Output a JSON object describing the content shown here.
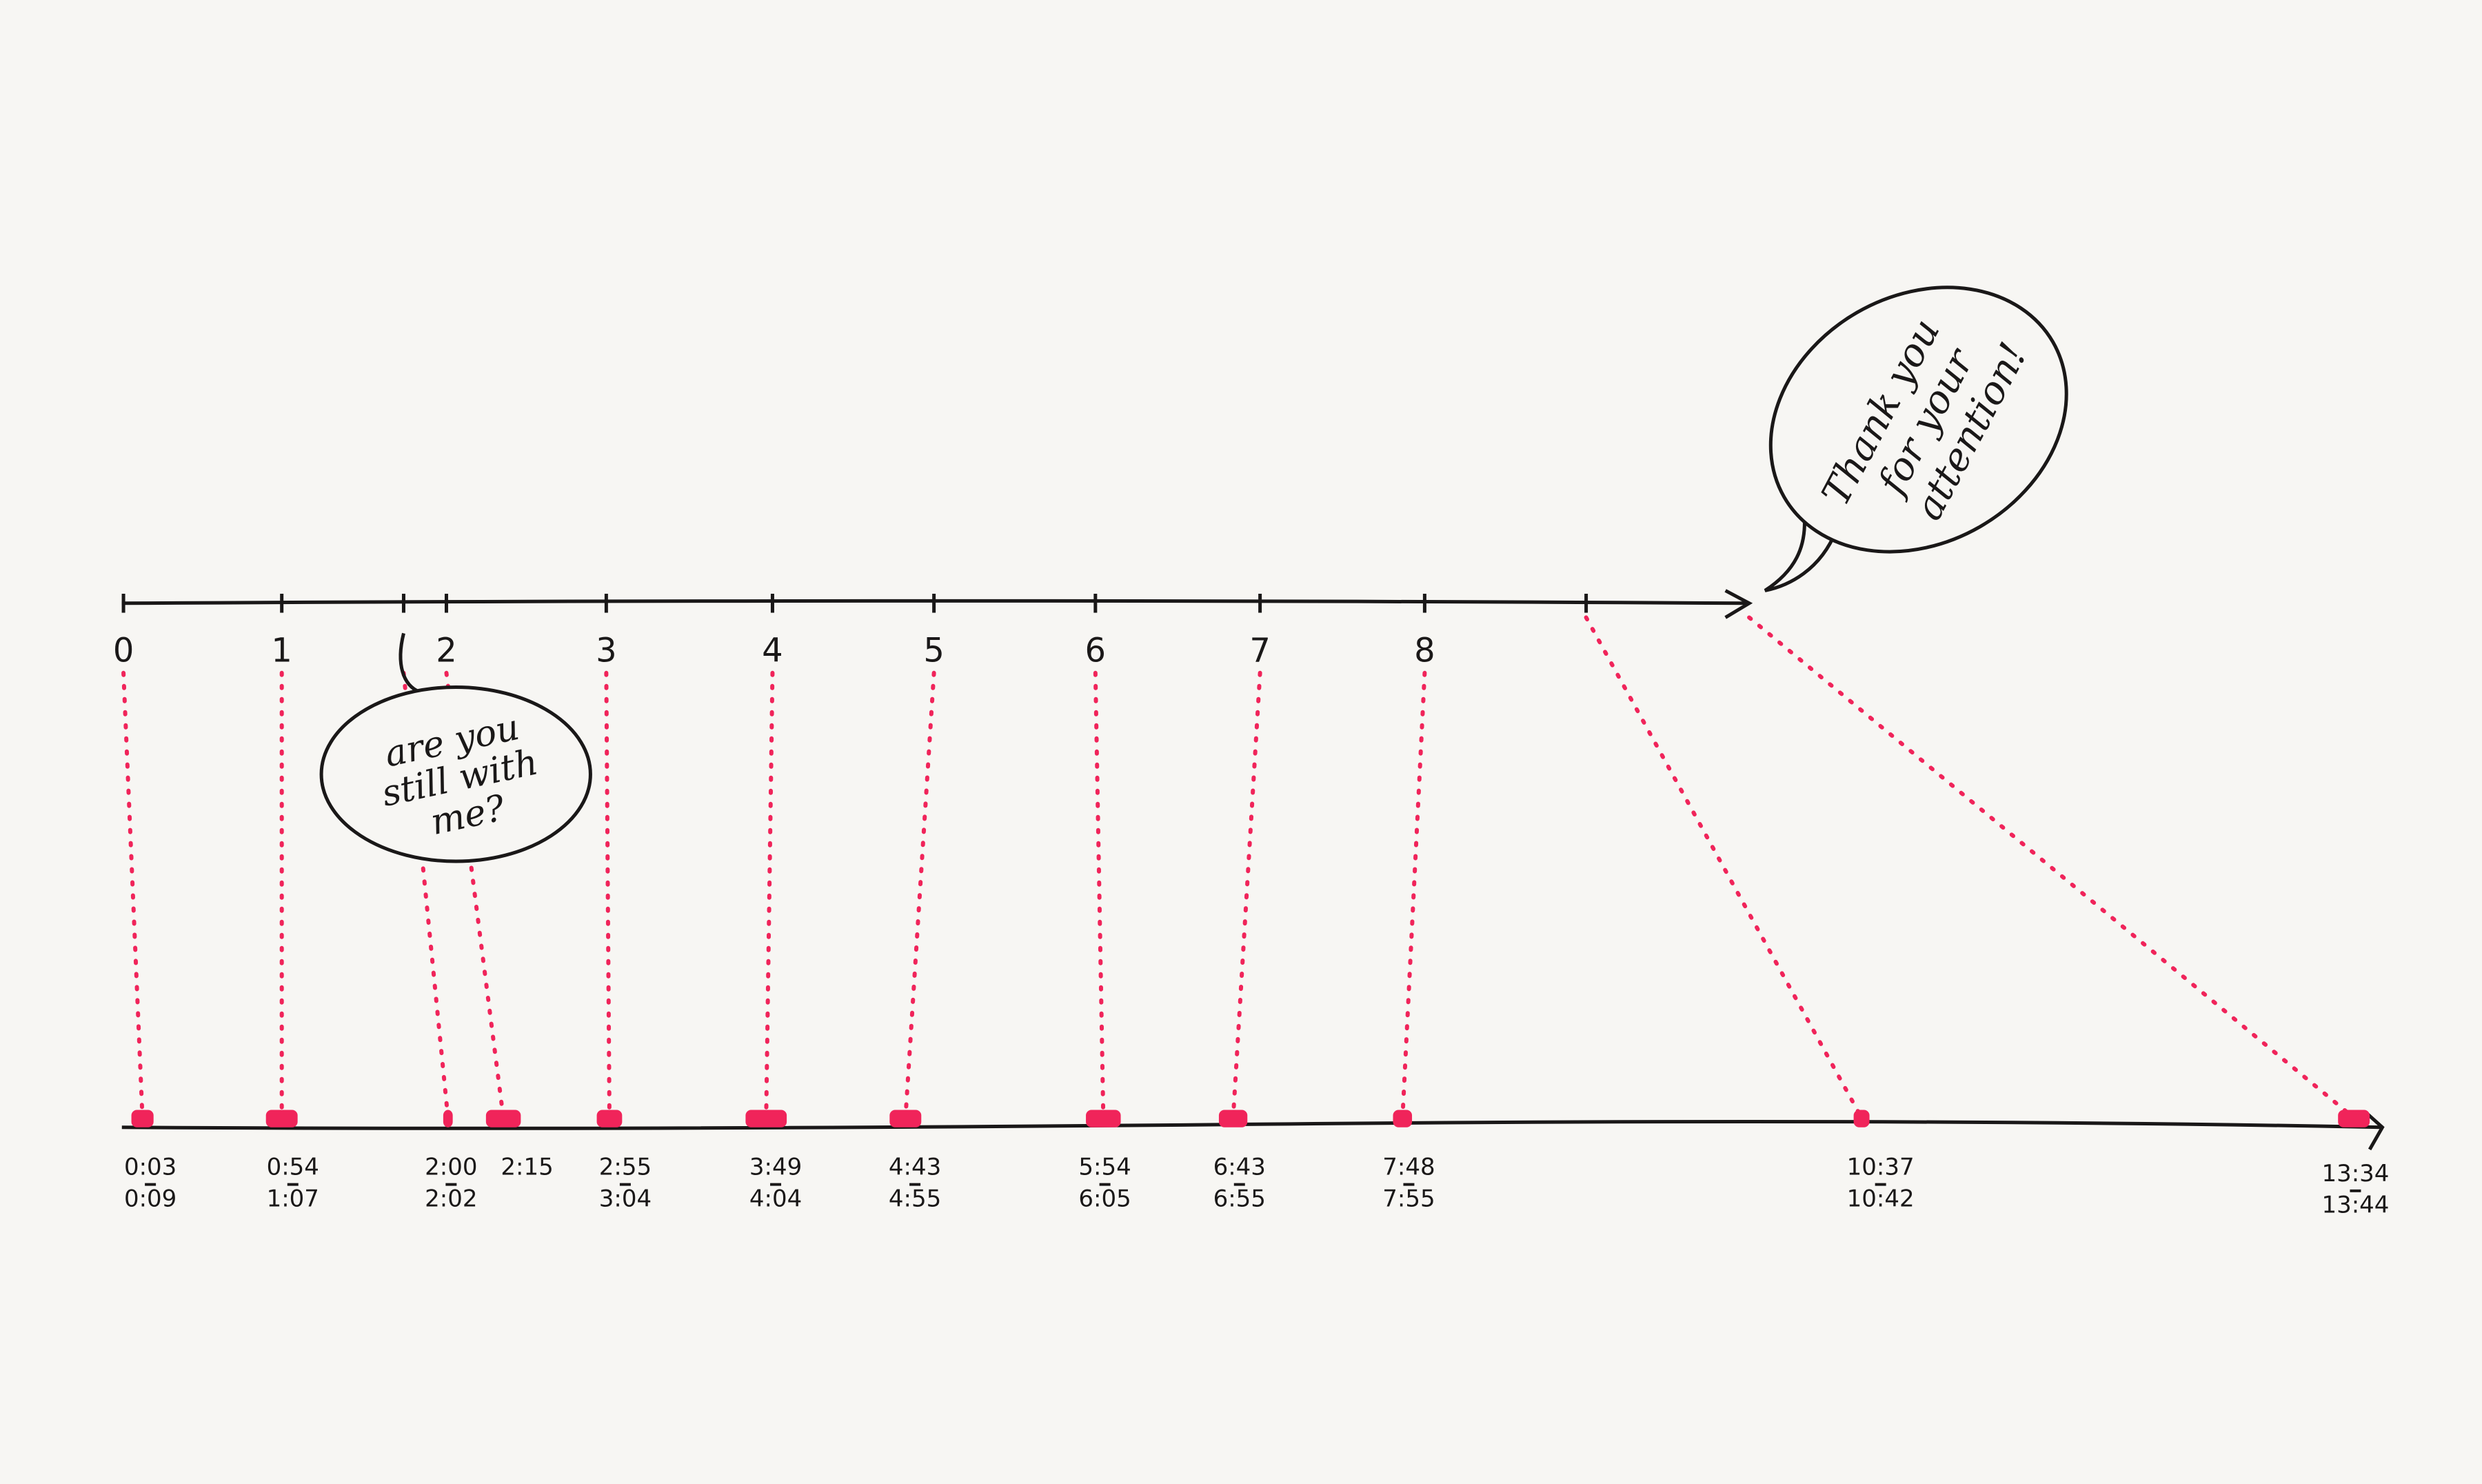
{
  "top_axis": {
    "tick_labels": [
      "0",
      "1",
      "",
      "2",
      "3",
      "4",
      "5",
      "6",
      "7",
      "8",
      ""
    ]
  },
  "bottom_axis": {
    "time_labels": [
      {
        "start": "0:03",
        "end": "0:09"
      },
      {
        "start": "0:54",
        "end": "1:07"
      },
      {
        "start": "2:00",
        "end": "2:02"
      },
      {
        "start": "2:15",
        "end": ""
      },
      {
        "start": "2:55",
        "end": "3:04"
      },
      {
        "start": "3:49",
        "end": "4:04"
      },
      {
        "start": "4:43",
        "end": "4:55"
      },
      {
        "start": "5:54",
        "end": "6:05"
      },
      {
        "start": "6:43",
        "end": "6:55"
      },
      {
        "start": "7:48",
        "end": "7:55"
      },
      {
        "start": "10:37",
        "end": "10:42"
      },
      {
        "start": "13:34",
        "end": "13:44"
      }
    ]
  },
  "bubbles": {
    "middle": {
      "lines": [
        "are you",
        "still with",
        "me?"
      ]
    },
    "end": {
      "lines": [
        "Thank you",
        "for your",
        "attention!"
      ]
    }
  },
  "colors": {
    "ink": "#1a1818",
    "marker": "#f0245a",
    "paper": "#f7f6f3"
  }
}
